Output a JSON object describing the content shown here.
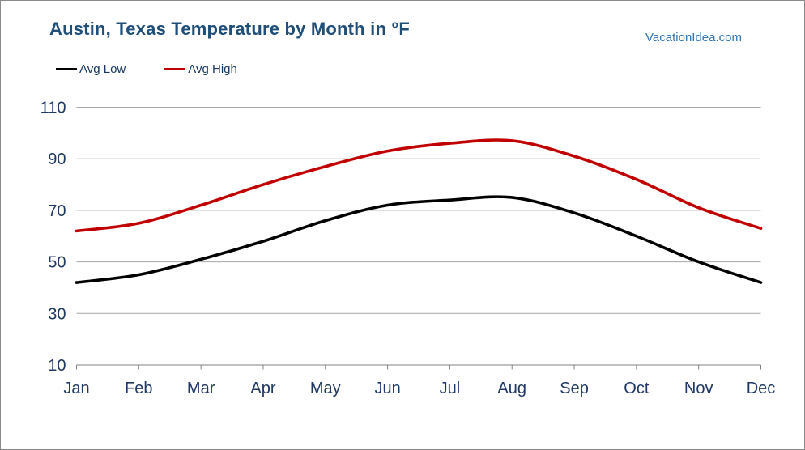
{
  "header": {
    "title": "Austin, Texas Temperature by Month in °F",
    "watermark": "VacationIdea.com"
  },
  "chart_data": {
    "type": "line",
    "title": "Austin, Texas Temperature by Month in °F",
    "unit": "°F",
    "categories": [
      "Jan",
      "Feb",
      "Mar",
      "Apr",
      "May",
      "Jun",
      "Jul",
      "Aug",
      "Sep",
      "Oct",
      "Nov",
      "Dec"
    ],
    "series": [
      {
        "name": "Avg Low",
        "color": "#000000",
        "values": [
          42,
          45,
          51,
          58,
          66,
          72,
          74,
          75,
          69,
          60,
          50,
          42
        ]
      },
      {
        "name": "Avg High",
        "color": "#c00000",
        "values": [
          62,
          65,
          72,
          80,
          87,
          93,
          96,
          97,
          91,
          82,
          71,
          63
        ]
      }
    ],
    "ylim": [
      10,
      110
    ],
    "yticks": [
      110,
      90,
      70,
      50,
      30,
      10
    ],
    "grid": "horizontal",
    "legend_position": "top-left"
  },
  "colors": {
    "title_text": "#1f4e79",
    "axis_text": "#1f3864",
    "legend_text": "#17375e",
    "watermark_text": "#2e75b6",
    "gridline": "#a6a6a6",
    "axis_line": "#808080",
    "avg_low_line": "#000000",
    "avg_high_line": "#c00000"
  }
}
